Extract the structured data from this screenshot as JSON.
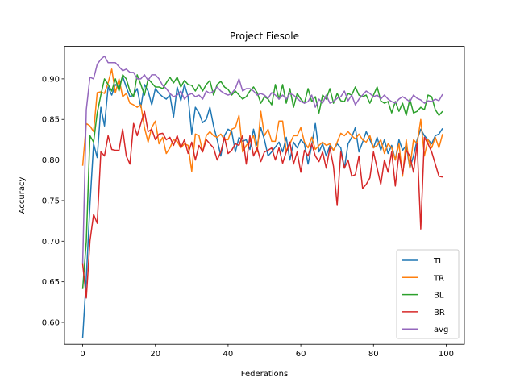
{
  "chart_data": {
    "type": "line",
    "title": "Project Fiesole",
    "xlabel": "Federations",
    "ylabel": "Accuracy",
    "xlim": [
      -5,
      105
    ],
    "ylim": [
      0.573,
      0.94
    ],
    "xticks": [
      0,
      20,
      40,
      60,
      80,
      100
    ],
    "yticks": [
      0.6,
      0.65,
      0.7,
      0.75,
      0.8,
      0.85,
      0.9
    ],
    "ytick_labels": [
      "0.60",
      "0.65",
      "0.70",
      "0.75",
      "0.80",
      "0.85",
      "0.90"
    ],
    "grid": false,
    "legend_position": "lower-right",
    "series": [
      {
        "name": "TL",
        "color": "#1f77b4",
        "values": [
          0.581,
          0.655,
          0.745,
          0.82,
          0.803,
          0.865,
          0.842,
          0.89,
          0.88,
          0.893,
          0.89,
          0.903,
          0.89,
          0.878,
          0.88,
          0.888,
          0.865,
          0.893,
          0.885,
          0.868,
          0.888,
          0.882,
          0.878,
          0.875,
          0.88,
          0.853,
          0.89,
          0.873,
          0.893,
          0.878,
          0.832,
          0.865,
          0.858,
          0.846,
          0.85,
          0.865,
          0.842,
          0.825,
          0.805,
          0.83,
          0.838,
          0.835,
          0.81,
          0.828,
          0.823,
          0.825,
          0.813,
          0.838,
          0.818,
          0.84,
          0.825,
          0.805,
          0.81,
          0.816,
          0.822,
          0.81,
          0.828,
          0.8,
          0.822,
          0.815,
          0.825,
          0.82,
          0.795,
          0.818,
          0.845,
          0.81,
          0.82,
          0.805,
          0.818,
          0.812,
          0.82,
          0.815,
          0.79,
          0.82,
          0.828,
          0.84,
          0.81,
          0.822,
          0.835,
          0.825,
          0.815,
          0.828,
          0.812,
          0.825,
          0.808,
          0.818,
          0.8,
          0.825,
          0.812,
          0.818,
          0.79,
          0.805,
          0.825,
          0.838,
          0.83,
          0.825,
          0.82,
          0.83,
          0.832,
          0.839
        ]
      },
      {
        "name": "TR",
        "color": "#ff7f0e",
        "values": [
          0.793,
          0.845,
          0.842,
          0.835,
          0.883,
          0.884,
          0.882,
          0.895,
          0.912,
          0.883,
          0.9,
          0.878,
          0.882,
          0.87,
          0.868,
          0.865,
          0.868,
          0.84,
          0.822,
          0.84,
          0.848,
          0.82,
          0.828,
          0.808,
          0.815,
          0.825,
          0.823,
          0.815,
          0.82,
          0.818,
          0.786,
          0.832,
          0.83,
          0.81,
          0.83,
          0.835,
          0.83,
          0.828,
          0.832,
          0.825,
          0.825,
          0.838,
          0.84,
          0.855,
          0.81,
          0.818,
          0.823,
          0.83,
          0.81,
          0.86,
          0.83,
          0.838,
          0.823,
          0.823,
          0.848,
          0.848,
          0.81,
          0.82,
          0.83,
          0.83,
          0.84,
          0.822,
          0.815,
          0.828,
          0.813,
          0.818,
          0.822,
          0.818,
          0.82,
          0.812,
          0.822,
          0.833,
          0.83,
          0.835,
          0.83,
          0.826,
          0.832,
          0.825,
          0.822,
          0.83,
          0.815,
          0.818,
          0.825,
          0.808,
          0.82,
          0.815,
          0.8,
          0.82,
          0.78,
          0.825,
          0.79,
          0.825,
          0.82,
          0.85,
          0.805,
          0.825,
          0.815,
          0.828,
          0.815,
          0.832
        ]
      },
      {
        "name": "BL",
        "color": "#2ca02c",
        "values": [
          0.641,
          0.7,
          0.83,
          0.822,
          0.858,
          0.88,
          0.9,
          0.893,
          0.885,
          0.9,
          0.885,
          0.905,
          0.9,
          0.885,
          0.878,
          0.905,
          0.893,
          0.88,
          0.9,
          0.895,
          0.89,
          0.89,
          0.888,
          0.895,
          0.902,
          0.895,
          0.902,
          0.89,
          0.898,
          0.893,
          0.892,
          0.885,
          0.893,
          0.885,
          0.893,
          0.898,
          0.88,
          0.893,
          0.897,
          0.89,
          0.887,
          0.88,
          0.885,
          0.88,
          0.875,
          0.878,
          0.885,
          0.89,
          0.883,
          0.87,
          0.878,
          0.875,
          0.868,
          0.893,
          0.875,
          0.893,
          0.87,
          0.888,
          0.865,
          0.882,
          0.875,
          0.87,
          0.888,
          0.872,
          0.878,
          0.858,
          0.88,
          0.875,
          0.888,
          0.87,
          0.882,
          0.873,
          0.872,
          0.882,
          0.88,
          0.89,
          0.88,
          0.878,
          0.88,
          0.87,
          0.88,
          0.89,
          0.873,
          0.87,
          0.872,
          0.858,
          0.872,
          0.86,
          0.87,
          0.855,
          0.875,
          0.858,
          0.86,
          0.865,
          0.862,
          0.88,
          0.878,
          0.862,
          0.855,
          0.86
        ]
      },
      {
        "name": "BR",
        "color": "#d62728",
        "values": [
          0.672,
          0.63,
          0.7,
          0.733,
          0.722,
          0.81,
          0.805,
          0.83,
          0.813,
          0.812,
          0.812,
          0.838,
          0.805,
          0.795,
          0.845,
          0.83,
          0.845,
          0.86,
          0.835,
          0.838,
          0.825,
          0.832,
          0.833,
          0.825,
          0.828,
          0.818,
          0.83,
          0.815,
          0.825,
          0.808,
          0.822,
          0.8,
          0.818,
          0.81,
          0.825,
          0.82,
          0.815,
          0.8,
          0.81,
          0.828,
          0.808,
          0.812,
          0.82,
          0.818,
          0.83,
          0.795,
          0.83,
          0.805,
          0.815,
          0.798,
          0.81,
          0.812,
          0.815,
          0.8,
          0.815,
          0.796,
          0.81,
          0.822,
          0.795,
          0.81,
          0.785,
          0.812,
          0.805,
          0.82,
          0.805,
          0.798,
          0.81,
          0.79,
          0.815,
          0.792,
          0.744,
          0.81,
          0.79,
          0.8,
          0.78,
          0.782,
          0.805,
          0.765,
          0.77,
          0.778,
          0.81,
          0.79,
          0.77,
          0.8,
          0.785,
          0.81,
          0.768,
          0.808,
          0.783,
          0.812,
          0.805,
          0.785,
          0.82,
          0.715,
          0.828,
          0.82,
          0.81,
          0.795,
          0.78,
          0.779
        ]
      },
      {
        "name": "avg",
        "color": "#9467bd",
        "values": [
          0.672,
          0.862,
          0.902,
          0.9,
          0.918,
          0.924,
          0.928,
          0.92,
          0.92,
          0.92,
          0.915,
          0.91,
          0.912,
          0.908,
          0.908,
          0.9,
          0.9,
          0.905,
          0.898,
          0.905,
          0.905,
          0.9,
          0.892,
          0.888,
          0.882,
          0.878,
          0.88,
          0.885,
          0.875,
          0.88,
          0.882,
          0.878,
          0.88,
          0.875,
          0.885,
          0.882,
          0.885,
          0.89,
          0.885,
          0.882,
          0.88,
          0.882,
          0.888,
          0.9,
          0.885,
          0.888,
          0.888,
          0.885,
          0.88,
          0.882,
          0.88,
          0.876,
          0.883,
          0.88,
          0.875,
          0.88,
          0.875,
          0.882,
          0.88,
          0.876,
          0.872,
          0.87,
          0.872,
          0.88,
          0.865,
          0.875,
          0.87,
          0.88,
          0.87,
          0.872,
          0.876,
          0.878,
          0.885,
          0.873,
          0.88,
          0.868,
          0.875,
          0.88,
          0.885,
          0.882,
          0.878,
          0.88,
          0.875,
          0.88,
          0.875,
          0.872,
          0.87,
          0.875,
          0.878,
          0.875,
          0.872,
          0.88,
          0.876,
          0.874,
          0.87,
          0.873,
          0.872,
          0.875,
          0.873,
          0.881
        ]
      }
    ]
  }
}
